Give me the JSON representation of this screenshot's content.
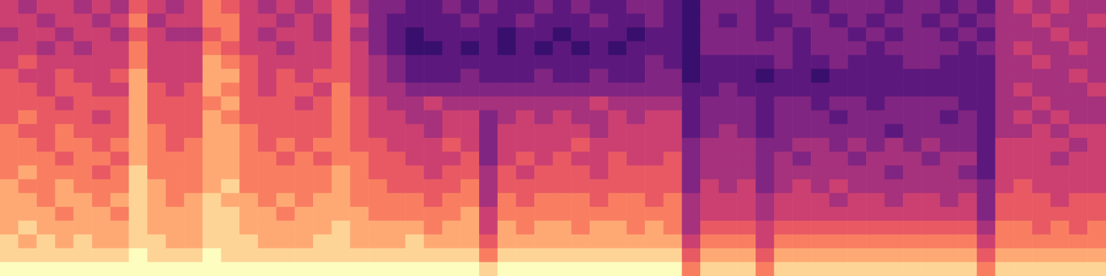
{
  "chart_data": {
    "type": "heatmap",
    "tick_labels": false,
    "clim": [
      0,
      10
    ],
    "cells": [
      [
        5,
        4,
        5,
        5,
        4,
        5,
        4,
        6,
        5,
        4,
        5,
        7,
        6,
        5,
        4,
        5,
        4,
        5,
        6,
        4,
        3,
        3,
        2,
        2,
        3,
        2,
        3,
        2,
        2,
        3,
        2,
        3,
        2,
        2,
        3,
        3,
        2,
        1,
        3,
        3,
        3,
        2,
        3,
        3,
        2,
        3,
        3,
        3,
        2,
        3,
        3,
        2,
        3,
        2,
        4,
        5,
        4,
        5,
        4,
        4
      ],
      [
        5,
        5,
        4,
        5,
        5,
        4,
        5,
        7,
        4,
        5,
        5,
        7,
        7,
        5,
        5,
        4,
        5,
        4,
        6,
        5,
        3,
        2,
        2,
        2,
        2,
        3,
        2,
        2,
        3,
        2,
        2,
        2,
        3,
        2,
        2,
        3,
        2,
        1,
        3,
        2,
        3,
        2,
        2,
        3,
        3,
        2,
        3,
        2,
        3,
        3,
        2,
        3,
        2,
        3,
        4,
        4,
        5,
        4,
        4,
        5
      ],
      [
        4,
        5,
        5,
        4,
        5,
        5,
        4,
        6,
        5,
        4,
        4,
        6,
        7,
        5,
        4,
        5,
        5,
        4,
        6,
        4,
        3,
        2,
        1,
        2,
        2,
        2,
        2,
        1,
        2,
        2,
        1,
        2,
        2,
        2,
        1,
        2,
        2,
        1,
        3,
        3,
        3,
        2,
        3,
        2,
        3,
        3,
        2,
        3,
        2,
        3,
        3,
        2,
        3,
        2,
        4,
        4,
        4,
        5,
        4,
        4
      ],
      [
        5,
        5,
        4,
        5,
        4,
        5,
        5,
        7,
        5,
        5,
        5,
        7,
        6,
        5,
        5,
        4,
        5,
        5,
        6,
        5,
        3,
        2,
        1,
        1,
        2,
        1,
        2,
        1,
        2,
        1,
        2,
        1,
        2,
        1,
        2,
        2,
        2,
        1,
        3,
        3,
        3,
        3,
        3,
        2,
        3,
        3,
        3,
        2,
        3,
        3,
        3,
        3,
        2,
        3,
        4,
        5,
        4,
        4,
        5,
        4
      ],
      [
        5,
        6,
        5,
        5,
        5,
        5,
        5,
        7,
        5,
        5,
        5,
        8,
        7,
        6,
        5,
        5,
        5,
        5,
        6,
        5,
        4,
        3,
        2,
        2,
        2,
        2,
        2,
        2,
        2,
        2,
        2,
        2,
        2,
        2,
        2,
        3,
        2,
        1,
        2,
        2,
        2,
        2,
        3,
        2,
        2,
        3,
        2,
        2,
        2,
        3,
        3,
        2,
        2,
        2,
        4,
        4,
        5,
        4,
        4,
        4
      ],
      [
        6,
        5,
        5,
        6,
        5,
        5,
        6,
        8,
        5,
        5,
        5,
        8,
        8,
        6,
        5,
        6,
        5,
        6,
        6,
        5,
        4,
        3,
        2,
        2,
        2,
        3,
        2,
        2,
        2,
        3,
        2,
        2,
        3,
        2,
        2,
        3,
        3,
        1,
        2,
        2,
        2,
        1,
        2,
        2,
        1,
        2,
        2,
        2,
        2,
        2,
        2,
        2,
        2,
        2,
        4,
        4,
        4,
        4,
        5,
        4
      ],
      [
        6,
        6,
        5,
        6,
        6,
        5,
        5,
        8,
        6,
        5,
        6,
        8,
        7,
        6,
        5,
        6,
        6,
        5,
        7,
        5,
        4,
        4,
        3,
        3,
        3,
        3,
        3,
        3,
        3,
        3,
        3,
        3,
        3,
        3,
        3,
        3,
        3,
        2,
        2,
        3,
        2,
        2,
        2,
        2,
        2,
        2,
        2,
        2,
        2,
        2,
        2,
        2,
        2,
        2,
        4,
        5,
        4,
        4,
        4,
        5
      ],
      [
        6,
        6,
        6,
        5,
        6,
        6,
        6,
        8,
        6,
        6,
        6,
        7,
        8,
        6,
        6,
        6,
        5,
        6,
        7,
        6,
        5,
        4,
        4,
        5,
        4,
        4,
        4,
        4,
        4,
        4,
        4,
        4,
        5,
        4,
        4,
        4,
        4,
        2,
        3,
        3,
        3,
        2,
        3,
        3,
        2,
        3,
        3,
        2,
        3,
        3,
        3,
        3,
        2,
        2,
        4,
        4,
        5,
        4,
        4,
        4
      ],
      [
        6,
        7,
        6,
        6,
        6,
        5,
        6,
        8,
        6,
        6,
        6,
        8,
        7,
        6,
        6,
        6,
        6,
        6,
        7,
        6,
        5,
        5,
        4,
        4,
        5,
        5,
        3,
        4,
        5,
        4,
        5,
        4,
        4,
        5,
        4,
        5,
        5,
        2,
        3,
        3,
        3,
        2,
        3,
        3,
        3,
        2,
        3,
        3,
        3,
        3,
        3,
        2,
        3,
        2,
        4,
        5,
        4,
        5,
        4,
        4
      ],
      [
        7,
        6,
        6,
        7,
        6,
        6,
        6,
        8,
        7,
        6,
        6,
        8,
        8,
        7,
        6,
        6,
        6,
        6,
        7,
        6,
        5,
        5,
        5,
        4,
        5,
        5,
        3,
        5,
        5,
        5,
        5,
        5,
        4,
        5,
        5,
        5,
        5,
        2,
        3,
        4,
        3,
        2,
        3,
        3,
        3,
        3,
        3,
        3,
        2,
        3,
        3,
        3,
        3,
        2,
        4,
        4,
        5,
        4,
        5,
        5
      ],
      [
        7,
        7,
        6,
        7,
        7,
        6,
        7,
        8,
        7,
        6,
        7,
        8,
        8,
        7,
        6,
        7,
        6,
        7,
        7,
        6,
        6,
        5,
        5,
        5,
        6,
        5,
        3,
        5,
        5,
        5,
        5,
        6,
        5,
        5,
        5,
        5,
        5,
        3,
        4,
        4,
        4,
        3,
        3,
        4,
        4,
        3,
        4,
        3,
        4,
        3,
        4,
        3,
        3,
        2,
        5,
        5,
        5,
        5,
        4,
        5
      ],
      [
        7,
        7,
        7,
        6,
        7,
        7,
        6,
        8,
        7,
        7,
        7,
        8,
        8,
        7,
        7,
        6,
        7,
        6,
        7,
        7,
        6,
        6,
        5,
        5,
        5,
        6,
        3,
        5,
        6,
        5,
        6,
        5,
        5,
        6,
        5,
        5,
        6,
        3,
        4,
        4,
        4,
        3,
        4,
        3,
        4,
        4,
        3,
        4,
        4,
        4,
        3,
        4,
        4,
        2,
        5,
        5,
        5,
        4,
        5,
        5
      ],
      [
        7,
        8,
        7,
        7,
        7,
        6,
        7,
        9,
        7,
        7,
        7,
        8,
        8,
        7,
        7,
        7,
        7,
        7,
        8,
        7,
        6,
        6,
        6,
        5,
        6,
        6,
        4,
        6,
        5,
        6,
        6,
        6,
        5,
        6,
        6,
        6,
        6,
        3,
        4,
        4,
        4,
        3,
        4,
        4,
        4,
        4,
        4,
        4,
        3,
        4,
        4,
        4,
        3,
        2,
        5,
        5,
        5,
        5,
        5,
        5
      ],
      [
        8,
        7,
        7,
        8,
        7,
        7,
        7,
        9,
        8,
        7,
        7,
        8,
        9,
        7,
        7,
        7,
        7,
        7,
        8,
        7,
        7,
        6,
        6,
        6,
        6,
        7,
        4,
        6,
        6,
        6,
        6,
        6,
        6,
        6,
        6,
        6,
        6,
        3,
        5,
        4,
        5,
        3,
        4,
        5,
        4,
        5,
        4,
        4,
        4,
        4,
        4,
        4,
        4,
        3,
        5,
        6,
        5,
        5,
        5,
        5
      ],
      [
        8,
        8,
        7,
        8,
        8,
        7,
        8,
        9,
        8,
        7,
        8,
        9,
        8,
        8,
        7,
        8,
        7,
        8,
        8,
        7,
        7,
        7,
        7,
        6,
        7,
        7,
        4,
        7,
        6,
        7,
        7,
        7,
        6,
        7,
        7,
        6,
        7,
        4,
        5,
        5,
        5,
        4,
        5,
        5,
        5,
        4,
        5,
        5,
        4,
        5,
        5,
        4,
        5,
        3,
        6,
        6,
        6,
        5,
        6,
        6
      ],
      [
        8,
        8,
        8,
        7,
        8,
        8,
        7,
        9,
        8,
        8,
        8,
        9,
        9,
        8,
        8,
        7,
        8,
        8,
        8,
        8,
        7,
        7,
        7,
        7,
        7,
        8,
        5,
        7,
        7,
        7,
        7,
        7,
        7,
        7,
        7,
        7,
        7,
        4,
        5,
        5,
        5,
        4,
        5,
        5,
        5,
        5,
        5,
        5,
        5,
        5,
        5,
        5,
        5,
        3,
        6,
        6,
        6,
        6,
        6,
        6
      ],
      [
        8,
        9,
        8,
        8,
        8,
        8,
        8,
        9,
        8,
        8,
        8,
        9,
        9,
        8,
        8,
        8,
        8,
        8,
        9,
        8,
        8,
        8,
        8,
        7,
        8,
        8,
        5,
        8,
        7,
        8,
        8,
        7,
        8,
        8,
        7,
        8,
        7,
        4,
        6,
        6,
        6,
        5,
        6,
        6,
        6,
        6,
        6,
        6,
        6,
        6,
        6,
        6,
        6,
        4,
        7,
        7,
        6,
        7,
        6,
        7
      ],
      [
        9,
        8,
        9,
        8,
        9,
        8,
        8,
        9,
        9,
        8,
        8,
        9,
        9,
        9,
        8,
        8,
        8,
        9,
        9,
        8,
        8,
        8,
        9,
        8,
        8,
        8,
        6,
        8,
        8,
        8,
        8,
        8,
        8,
        8,
        8,
        8,
        8,
        5,
        7,
        7,
        7,
        5,
        7,
        7,
        7,
        7,
        7,
        7,
        7,
        7,
        7,
        7,
        7,
        5,
        7,
        7,
        7,
        7,
        7,
        7
      ],
      [
        9,
        9,
        9,
        9,
        9,
        9,
        9,
        10,
        9,
        9,
        9,
        10,
        9,
        9,
        9,
        9,
        9,
        9,
        9,
        9,
        9,
        9,
        9,
        9,
        9,
        9,
        7,
        9,
        9,
        9,
        9,
        9,
        9,
        9,
        9,
        9,
        9,
        6,
        8,
        8,
        8,
        6,
        8,
        8,
        8,
        8,
        8,
        8,
        8,
        8,
        8,
        8,
        8,
        6,
        8,
        8,
        8,
        8,
        8,
        8
      ],
      [
        10,
        10,
        10,
        10,
        10,
        10,
        10,
        10,
        10,
        10,
        10,
        10,
        10,
        10,
        10,
        10,
        10,
        10,
        10,
        10,
        10,
        10,
        10,
        10,
        10,
        10,
        9,
        10,
        10,
        10,
        10,
        10,
        10,
        10,
        10,
        10,
        10,
        7,
        9,
        9,
        9,
        7,
        9,
        9,
        9,
        9,
        9,
        9,
        9,
        9,
        9,
        9,
        9,
        7,
        9,
        9,
        9,
        9,
        9,
        9
      ]
    ]
  }
}
